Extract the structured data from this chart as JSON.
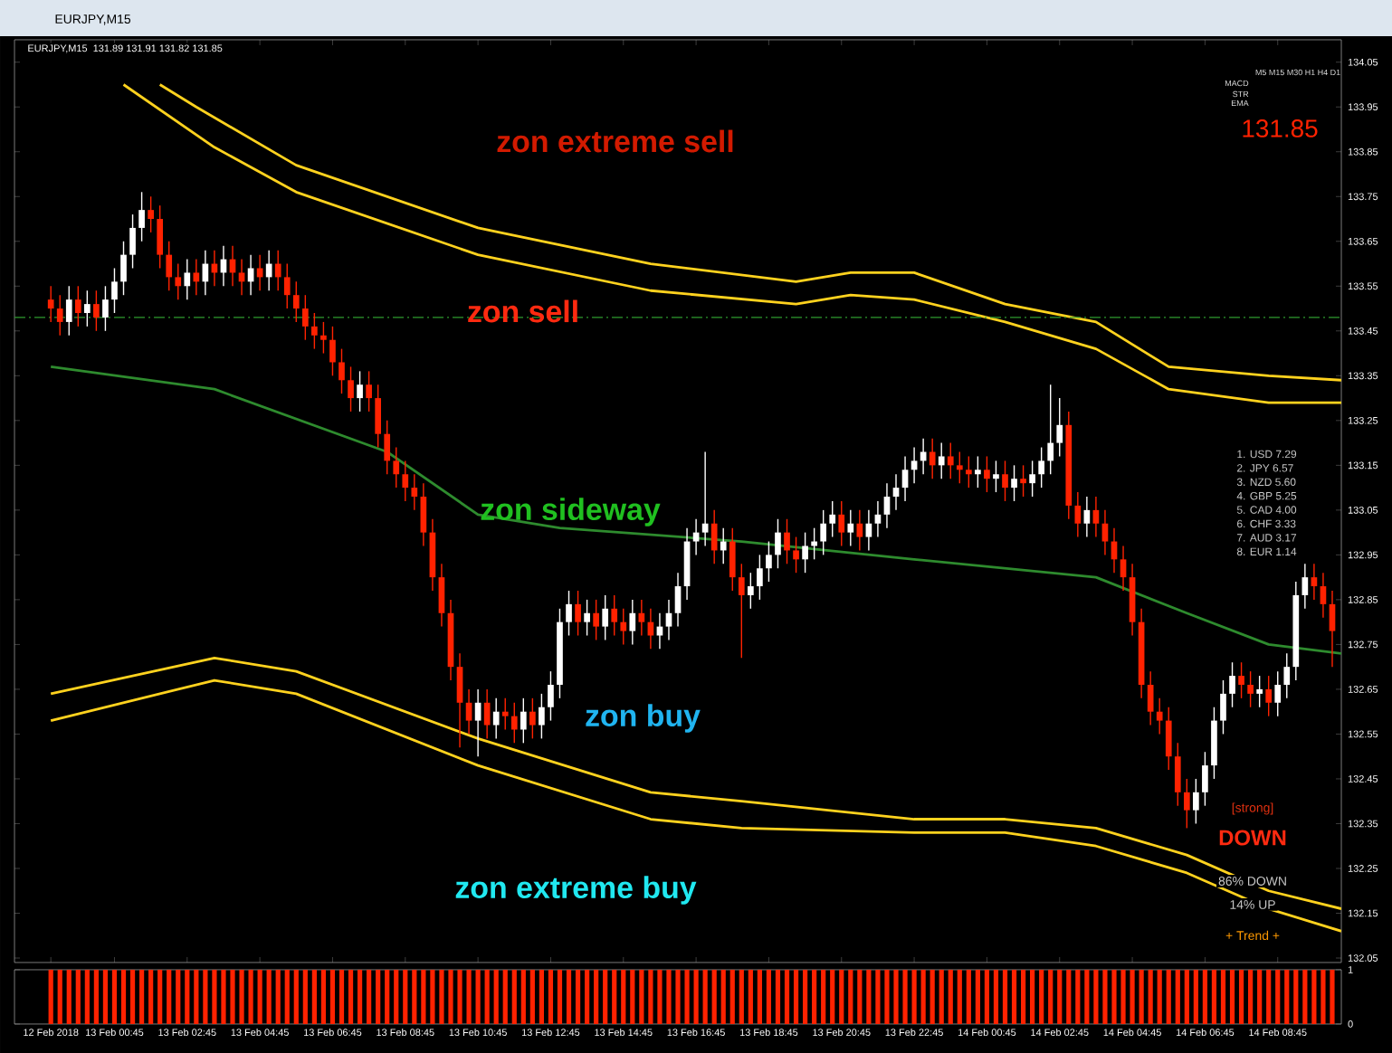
{
  "chart_data": [
    {
      "type": "candlestick",
      "title": "EURJPY,M15",
      "subtitle": "131.89 131.91 131.82 131.85",
      "x": [
        "2018-02-12T23:00",
        "2018-02-12T23:15",
        "2018-02-12T23:30",
        "2018-02-12T23:45",
        "2018-02-13T00:00",
        "2018-02-13T00:15",
        "2018-02-13T00:30",
        "2018-02-13T00:45",
        "2018-02-13T01:00",
        "2018-02-13T01:15",
        "2018-02-13T01:30",
        "2018-02-13T01:45",
        "2018-02-13T02:00",
        "2018-02-13T02:15",
        "2018-02-13T02:30",
        "2018-02-13T02:45",
        "2018-02-13T03:00",
        "2018-02-13T03:15",
        "2018-02-13T03:30",
        "2018-02-13T03:45",
        "2018-02-13T04:00",
        "2018-02-13T04:15",
        "2018-02-13T04:30",
        "2018-02-13T04:45",
        "2018-02-13T05:00",
        "2018-02-13T05:15",
        "2018-02-13T05:30",
        "2018-02-13T05:45",
        "2018-02-13T06:00",
        "2018-02-13T06:15",
        "2018-02-13T06:30",
        "2018-02-13T06:45",
        "2018-02-13T07:00",
        "2018-02-13T07:15",
        "2018-02-13T07:30",
        "2018-02-13T07:45",
        "2018-02-13T08:00",
        "2018-02-13T08:15",
        "2018-02-13T08:30",
        "2018-02-13T08:45",
        "2018-02-13T09:00",
        "2018-02-13T09:15",
        "2018-02-13T09:30",
        "2018-02-13T09:45",
        "2018-02-13T10:00",
        "2018-02-13T10:15",
        "2018-02-13T10:30",
        "2018-02-13T10:45",
        "2018-02-13T11:00",
        "2018-02-13T11:15",
        "2018-02-13T11:30",
        "2018-02-13T11:45",
        "2018-02-13T12:00",
        "2018-02-13T12:15",
        "2018-02-13T12:30",
        "2018-02-13T12:45",
        "2018-02-13T13:00",
        "2018-02-13T13:15",
        "2018-02-13T13:30",
        "2018-02-13T13:45",
        "2018-02-13T14:00",
        "2018-02-13T14:15",
        "2018-02-13T14:30",
        "2018-02-13T14:45",
        "2018-02-13T15:00",
        "2018-02-13T15:15",
        "2018-02-13T15:30",
        "2018-02-13T15:45",
        "2018-02-13T16:00",
        "2018-02-13T16:15",
        "2018-02-13T16:30",
        "2018-02-13T16:45",
        "2018-02-13T17:00",
        "2018-02-13T17:15",
        "2018-02-13T17:30",
        "2018-02-13T17:45",
        "2018-02-13T18:00",
        "2018-02-13T18:15",
        "2018-02-13T18:30",
        "2018-02-13T18:45",
        "2018-02-13T19:00",
        "2018-02-13T19:15",
        "2018-02-13T19:30",
        "2018-02-13T19:45",
        "2018-02-13T20:00",
        "2018-02-13T20:15",
        "2018-02-13T20:30",
        "2018-02-13T20:45",
        "2018-02-13T21:00",
        "2018-02-13T21:15",
        "2018-02-13T21:30",
        "2018-02-13T21:45",
        "2018-02-13T22:00",
        "2018-02-13T22:15",
        "2018-02-13T22:30",
        "2018-02-13T22:45",
        "2018-02-13T23:00",
        "2018-02-13T23:15",
        "2018-02-13T23:30",
        "2018-02-13T23:45",
        "2018-02-14T00:00",
        "2018-02-14T00:15",
        "2018-02-14T00:30",
        "2018-02-14T00:45",
        "2018-02-14T01:00",
        "2018-02-14T01:15",
        "2018-02-14T01:30",
        "2018-02-14T01:45",
        "2018-02-14T02:00",
        "2018-02-14T02:15",
        "2018-02-14T02:30",
        "2018-02-14T02:45",
        "2018-02-14T03:00",
        "2018-02-14T03:15",
        "2018-02-14T03:30",
        "2018-02-14T03:45",
        "2018-02-14T04:00",
        "2018-02-14T04:15",
        "2018-02-14T04:30",
        "2018-02-14T04:45",
        "2018-02-14T05:00",
        "2018-02-14T05:15",
        "2018-02-14T05:30",
        "2018-02-14T05:45",
        "2018-02-14T06:00",
        "2018-02-14T06:15",
        "2018-02-14T06:30",
        "2018-02-14T06:45",
        "2018-02-14T07:00",
        "2018-02-14T07:15",
        "2018-02-14T07:30",
        "2018-02-14T07:45",
        "2018-02-14T08:00",
        "2018-02-14T08:15",
        "2018-02-14T08:30",
        "2018-02-14T08:45",
        "2018-02-14T09:00",
        "2018-02-14T09:15",
        "2018-02-14T09:30",
        "2018-02-14T09:45",
        "2018-02-14T10:00",
        "2018-02-14T10:15"
      ],
      "ohlc": [
        [
          133.52,
          133.55,
          133.47,
          133.5
        ],
        [
          133.5,
          133.53,
          133.44,
          133.47
        ],
        [
          133.47,
          133.55,
          133.44,
          133.52
        ],
        [
          133.52,
          133.55,
          133.46,
          133.49
        ],
        [
          133.49,
          133.54,
          133.46,
          133.51
        ],
        [
          133.51,
          133.54,
          133.45,
          133.48
        ],
        [
          133.48,
          133.55,
          133.45,
          133.52
        ],
        [
          133.52,
          133.59,
          133.49,
          133.56
        ],
        [
          133.56,
          133.65,
          133.53,
          133.62
        ],
        [
          133.62,
          133.71,
          133.59,
          133.68
        ],
        [
          133.68,
          133.76,
          133.65,
          133.72
        ],
        [
          133.72,
          133.75,
          133.67,
          133.7
        ],
        [
          133.7,
          133.73,
          133.59,
          133.62
        ],
        [
          133.62,
          133.65,
          133.54,
          133.57
        ],
        [
          133.57,
          133.6,
          133.52,
          133.55
        ],
        [
          133.55,
          133.61,
          133.52,
          133.58
        ],
        [
          133.58,
          133.61,
          133.53,
          133.56
        ],
        [
          133.56,
          133.63,
          133.53,
          133.6
        ],
        [
          133.6,
          133.63,
          133.55,
          133.58
        ],
        [
          133.58,
          133.64,
          133.55,
          133.61
        ],
        [
          133.61,
          133.64,
          133.55,
          133.58
        ],
        [
          133.58,
          133.61,
          133.53,
          133.56
        ],
        [
          133.56,
          133.62,
          133.53,
          133.59
        ],
        [
          133.59,
          133.62,
          133.54,
          133.57
        ],
        [
          133.57,
          133.63,
          133.54,
          133.6
        ],
        [
          133.6,
          133.63,
          133.54,
          133.57
        ],
        [
          133.57,
          133.6,
          133.5,
          133.53
        ],
        [
          133.53,
          133.56,
          133.47,
          133.5
        ],
        [
          133.5,
          133.53,
          133.43,
          133.46
        ],
        [
          133.46,
          133.49,
          133.41,
          133.44
        ],
        [
          133.44,
          133.47,
          133.4,
          133.43
        ],
        [
          133.43,
          133.46,
          133.35,
          133.38
        ],
        [
          133.38,
          133.41,
          133.31,
          133.34
        ],
        [
          133.34,
          133.37,
          133.27,
          133.3
        ],
        [
          133.3,
          133.36,
          133.27,
          133.33
        ],
        [
          133.33,
          133.36,
          133.27,
          133.3
        ],
        [
          133.3,
          133.33,
          133.19,
          133.22
        ],
        [
          133.22,
          133.25,
          133.13,
          133.16
        ],
        [
          133.16,
          133.19,
          133.1,
          133.13
        ],
        [
          133.13,
          133.16,
          133.07,
          133.1
        ],
        [
          133.1,
          133.13,
          133.05,
          133.08
        ],
        [
          133.08,
          133.11,
          132.97,
          133.0
        ],
        [
          133.0,
          133.03,
          132.87,
          132.9
        ],
        [
          132.9,
          132.93,
          132.79,
          132.82
        ],
        [
          132.82,
          132.85,
          132.67,
          132.7
        ],
        [
          132.7,
          132.73,
          132.52,
          132.62
        ],
        [
          132.62,
          132.65,
          132.55,
          132.58
        ],
        [
          132.58,
          132.65,
          132.5,
          132.62
        ],
        [
          132.62,
          132.65,
          132.54,
          132.57
        ],
        [
          132.57,
          132.63,
          132.54,
          132.6
        ],
        [
          132.6,
          132.63,
          132.56,
          132.59
        ],
        [
          132.59,
          132.62,
          132.53,
          132.56
        ],
        [
          132.56,
          132.63,
          132.53,
          132.6
        ],
        [
          132.6,
          132.63,
          132.54,
          132.57
        ],
        [
          132.57,
          132.64,
          132.54,
          132.61
        ],
        [
          132.61,
          132.69,
          132.58,
          132.66
        ],
        [
          132.66,
          132.83,
          132.63,
          132.8
        ],
        [
          132.8,
          132.87,
          132.77,
          132.84
        ],
        [
          132.84,
          132.87,
          132.77,
          132.8
        ],
        [
          132.8,
          132.85,
          132.77,
          132.82
        ],
        [
          132.82,
          132.85,
          132.76,
          132.79
        ],
        [
          132.79,
          132.86,
          132.76,
          132.83
        ],
        [
          132.83,
          132.86,
          132.77,
          132.8
        ],
        [
          132.8,
          132.83,
          132.75,
          132.78
        ],
        [
          132.78,
          132.85,
          132.75,
          132.82
        ],
        [
          132.82,
          132.85,
          132.77,
          132.8
        ],
        [
          132.8,
          132.83,
          132.74,
          132.77
        ],
        [
          132.77,
          132.82,
          132.74,
          132.79
        ],
        [
          132.79,
          132.85,
          132.76,
          132.82
        ],
        [
          132.82,
          132.91,
          132.79,
          132.88
        ],
        [
          132.88,
          133.01,
          132.85,
          132.98
        ],
        [
          132.98,
          133.03,
          132.95,
          133.0
        ],
        [
          133.0,
          133.18,
          132.97,
          133.02
        ],
        [
          133.02,
          133.05,
          132.93,
          132.96
        ],
        [
          132.96,
          133.01,
          132.93,
          132.98
        ],
        [
          132.98,
          133.01,
          132.87,
          132.9
        ],
        [
          132.9,
          132.93,
          132.72,
          132.86
        ],
        [
          132.86,
          132.91,
          132.83,
          132.88
        ],
        [
          132.88,
          132.95,
          132.85,
          132.92
        ],
        [
          132.92,
          132.98,
          132.89,
          132.95
        ],
        [
          132.95,
          133.03,
          132.92,
          133.0
        ],
        [
          133.0,
          133.03,
          132.93,
          132.96
        ],
        [
          132.96,
          132.99,
          132.91,
          132.94
        ],
        [
          132.94,
          133.0,
          132.91,
          132.97
        ],
        [
          132.97,
          133.01,
          132.94,
          132.98
        ],
        [
          132.98,
          133.05,
          132.95,
          133.02
        ],
        [
          133.02,
          133.07,
          132.99,
          133.04
        ],
        [
          133.04,
          133.07,
          132.97,
          133.0
        ],
        [
          133.0,
          133.05,
          132.97,
          133.02
        ],
        [
          133.02,
          133.05,
          132.96,
          132.99
        ],
        [
          132.99,
          133.05,
          132.96,
          133.02
        ],
        [
          133.02,
          133.07,
          132.99,
          133.04
        ],
        [
          133.04,
          133.11,
          133.01,
          133.08
        ],
        [
          133.08,
          133.13,
          133.05,
          133.1
        ],
        [
          133.1,
          133.17,
          133.07,
          133.14
        ],
        [
          133.14,
          133.19,
          133.11,
          133.16
        ],
        [
          133.16,
          133.21,
          133.13,
          133.18
        ],
        [
          133.18,
          133.21,
          133.12,
          133.15
        ],
        [
          133.15,
          133.2,
          133.12,
          133.17
        ],
        [
          133.17,
          133.2,
          133.12,
          133.15
        ],
        [
          133.15,
          133.18,
          133.11,
          133.14
        ],
        [
          133.14,
          133.17,
          133.1,
          133.13
        ],
        [
          133.13,
          133.17,
          133.1,
          133.14
        ],
        [
          133.14,
          133.17,
          133.09,
          133.12
        ],
        [
          133.12,
          133.16,
          133.09,
          133.13
        ],
        [
          133.13,
          133.16,
          133.07,
          133.1
        ],
        [
          133.1,
          133.15,
          133.07,
          133.12
        ],
        [
          133.12,
          133.15,
          133.08,
          133.11
        ],
        [
          133.11,
          133.16,
          133.08,
          133.13
        ],
        [
          133.13,
          133.19,
          133.1,
          133.16
        ],
        [
          133.16,
          133.33,
          133.13,
          133.2
        ],
        [
          133.2,
          133.3,
          133.17,
          133.24
        ],
        [
          133.24,
          133.27,
          133.03,
          133.06
        ],
        [
          133.06,
          133.09,
          132.99,
          133.02
        ],
        [
          133.02,
          133.08,
          132.99,
          133.05
        ],
        [
          133.05,
          133.08,
          132.99,
          133.02
        ],
        [
          133.02,
          133.05,
          132.95,
          132.98
        ],
        [
          132.98,
          133.01,
          132.91,
          132.94
        ],
        [
          132.94,
          132.97,
          132.87,
          132.9
        ],
        [
          132.9,
          132.93,
          132.77,
          132.8
        ],
        [
          132.8,
          132.83,
          132.63,
          132.66
        ],
        [
          132.66,
          132.69,
          132.57,
          132.6
        ],
        [
          132.6,
          132.63,
          132.55,
          132.58
        ],
        [
          132.58,
          132.61,
          132.47,
          132.5
        ],
        [
          132.5,
          132.53,
          132.39,
          132.42
        ],
        [
          132.42,
          132.45,
          132.34,
          132.38
        ],
        [
          132.38,
          132.45,
          132.35,
          132.42
        ],
        [
          132.42,
          132.51,
          132.39,
          132.48
        ],
        [
          132.48,
          132.61,
          132.45,
          132.58
        ],
        [
          132.58,
          132.67,
          132.55,
          132.64
        ],
        [
          132.64,
          132.71,
          132.61,
          132.68
        ],
        [
          132.68,
          132.71,
          132.63,
          132.66
        ],
        [
          132.66,
          132.69,
          132.61,
          132.64
        ],
        [
          132.64,
          132.68,
          132.61,
          132.65
        ],
        [
          132.65,
          132.68,
          132.59,
          132.62
        ],
        [
          132.62,
          132.69,
          132.59,
          132.66
        ],
        [
          132.66,
          132.73,
          132.63,
          132.7
        ],
        [
          132.7,
          132.89,
          132.67,
          132.86
        ],
        [
          132.86,
          132.93,
          132.83,
          132.9
        ],
        [
          132.9,
          132.93,
          132.85,
          132.88
        ],
        [
          132.88,
          132.91,
          132.81,
          132.84
        ],
        [
          132.84,
          132.87,
          132.7,
          132.78
        ]
      ],
      "series": [
        {
          "type": "line",
          "color": "#ffd21e",
          "x": [
            "2018-02-13T02:00",
            "2018-02-13T03:00",
            "2018-02-13T05:45",
            "2018-02-13T10:45",
            "2018-02-13T15:30",
            "2018-02-13T19:30",
            "2018-02-13T21:00",
            "2018-02-13T22:45",
            "2018-02-14T01:15",
            "2018-02-14T03:45",
            "2018-02-14T05:45",
            "2018-02-14T08:30",
            "2018-02-14T10:30"
          ],
          "values": [
            134.0,
            133.95,
            133.82,
            133.68,
            133.6,
            133.56,
            133.58,
            133.58,
            133.51,
            133.47,
            133.37,
            133.35,
            133.34
          ]
        },
        {
          "type": "line",
          "color": "#ffd21e",
          "x": [
            "2018-02-13T01:00",
            "2018-02-13T03:30",
            "2018-02-13T05:45",
            "2018-02-13T10:45",
            "2018-02-13T15:30",
            "2018-02-13T19:30",
            "2018-02-13T21:00",
            "2018-02-13T22:45",
            "2018-02-14T01:15",
            "2018-02-14T03:45",
            "2018-02-14T05:45",
            "2018-02-14T08:30",
            "2018-02-14T10:30"
          ],
          "values": [
            134.0,
            133.86,
            133.76,
            133.62,
            133.54,
            133.51,
            133.53,
            133.52,
            133.47,
            133.41,
            133.32,
            133.29,
            133.29
          ]
        },
        {
          "type": "line",
          "color": "#2e8b2e",
          "x": [
            "2018-02-12T23:00",
            "2018-02-13T03:30",
            "2018-02-13T08:15",
            "2018-02-13T10:45",
            "2018-02-13T13:00",
            "2018-02-13T18:00",
            "2018-02-13T22:45",
            "2018-02-14T03:45",
            "2018-02-14T06:15",
            "2018-02-14T08:30",
            "2018-02-14T10:30"
          ],
          "values": [
            133.37,
            133.32,
            133.18,
            133.04,
            133.01,
            132.98,
            132.94,
            132.9,
            132.82,
            132.75,
            132.73
          ]
        },
        {
          "type": "line",
          "color": "#ffd21e",
          "x": [
            "2018-02-12T23:00",
            "2018-02-13T03:30",
            "2018-02-13T05:45",
            "2018-02-13T10:45",
            "2018-02-13T15:30",
            "2018-02-13T18:00",
            "2018-02-13T22:45",
            "2018-02-14T01:15",
            "2018-02-14T03:45",
            "2018-02-14T06:15",
            "2018-02-14T08:30",
            "2018-02-14T10:30"
          ],
          "values": [
            132.64,
            132.72,
            132.69,
            132.54,
            132.42,
            132.4,
            132.36,
            132.36,
            132.34,
            132.28,
            132.2,
            132.16
          ]
        },
        {
          "type": "line",
          "color": "#ffd21e",
          "x": [
            "2018-02-12T23:00",
            "2018-02-13T03:30",
            "2018-02-13T05:45",
            "2018-02-13T10:45",
            "2018-02-13T15:30",
            "2018-02-13T18:00",
            "2018-02-13T22:45",
            "2018-02-14T01:15",
            "2018-02-14T03:45",
            "2018-02-14T06:15",
            "2018-02-14T08:30",
            "2018-02-14T10:30"
          ],
          "values": [
            132.58,
            132.67,
            132.64,
            132.48,
            132.36,
            132.34,
            132.33,
            132.33,
            132.3,
            132.24,
            132.16,
            132.11
          ]
        }
      ],
      "xlim": [
        "2018-02-12T22:00",
        "2018-02-14T10:30"
      ],
      "xticks": [
        {
          "value": "2018-02-12T23:00",
          "label": null
        },
        {
          "value": "2018-02-13T00:45",
          "label": null
        },
        {
          "value": "2018-02-13T02:45",
          "label": null
        },
        {
          "value": "2018-02-13T04:45",
          "label": null
        },
        {
          "value": "2018-02-13T06:45",
          "label": null
        },
        {
          "value": "2018-02-13T08:45",
          "label": null
        },
        {
          "value": "2018-02-13T10:45",
          "label": null
        },
        {
          "value": "2018-02-13T12:45",
          "label": null
        },
        {
          "value": "2018-02-13T14:45",
          "label": null
        },
        {
          "value": "2018-02-13T16:45",
          "label": null
        },
        {
          "value": "2018-02-13T18:45",
          "label": null
        },
        {
          "value": "2018-02-13T20:45",
          "label": null
        },
        {
          "value": "2018-02-13T22:45",
          "label": null
        },
        {
          "value": "2018-02-14T00:45",
          "label": null
        },
        {
          "value": "2018-02-14T02:45",
          "label": null
        },
        {
          "value": "2018-02-14T04:45",
          "label": null
        },
        {
          "value": "2018-02-14T06:45",
          "label": null
        },
        {
          "value": "2018-02-14T08:45",
          "label": null
        }
      ],
      "ylim": [
        132.04,
        134.1
      ],
      "yticks": [
        132.05,
        132.15,
        132.25,
        132.35,
        132.45,
        132.55,
        132.65,
        132.75,
        132.85,
        132.95,
        133.05,
        133.15,
        133.25,
        133.35,
        133.45,
        133.55,
        133.65,
        133.75,
        133.85,
        133.95,
        134.05
      ],
      "tick_labels": "y",
      "ref_lines": [
        {
          "axis": "y",
          "value": 133.48,
          "color": "#2e9a2e",
          "line_style": "dashed"
        }
      ],
      "annotations": [
        "zon extreme sell",
        "zon sell",
        "zon sideway",
        "zon buy",
        "zon extreme buy",
        "M5 M15 M30 H1 H4 D1",
        "MACD",
        "STR",
        "EMA",
        "131.85",
        "1. USD 7.29",
        "2. JPY 6.57",
        "3. NZD 5.60",
        "4. GBP 5.25",
        "5. CAD 4.00",
        "6. CHF 3.33",
        "7. AUD 3.17",
        "8. EUR 1.14",
        "[strong]",
        "DOWN",
        "86% DOWN",
        "14% UP",
        "+ Trend +"
      ]
    },
    {
      "type": "bar",
      "color": "#ff2200",
      "x": [
        "2018-02-12T23:00",
        "2018-02-12T23:15",
        "2018-02-12T23:30",
        "2018-02-12T23:45",
        "2018-02-13T00:00",
        "2018-02-13T00:15",
        "2018-02-13T00:30",
        "2018-02-13T00:45",
        "2018-02-13T01:00",
        "2018-02-13T01:15",
        "2018-02-13T01:30",
        "2018-02-13T01:45",
        "2018-02-13T02:00",
        "2018-02-13T02:15",
        "2018-02-13T02:30",
        "2018-02-13T02:45",
        "2018-02-13T03:00",
        "2018-02-13T03:15",
        "2018-02-13T03:30",
        "2018-02-13T03:45",
        "2018-02-13T04:00",
        "2018-02-13T04:15",
        "2018-02-13T04:30",
        "2018-02-13T04:45",
        "2018-02-13T05:00",
        "2018-02-13T05:15",
        "2018-02-13T05:30",
        "2018-02-13T05:45",
        "2018-02-13T06:00",
        "2018-02-13T06:15",
        "2018-02-13T06:30",
        "2018-02-13T06:45",
        "2018-02-13T07:00",
        "2018-02-13T07:15",
        "2018-02-13T07:30",
        "2018-02-13T07:45",
        "2018-02-13T08:00",
        "2018-02-13T08:15",
        "2018-02-13T08:30",
        "2018-02-13T08:45",
        "2018-02-13T09:00",
        "2018-02-13T09:15",
        "2018-02-13T09:30",
        "2018-02-13T09:45",
        "2018-02-13T10:00",
        "2018-02-13T10:15",
        "2018-02-13T10:30",
        "2018-02-13T10:45",
        "2018-02-13T11:00",
        "2018-02-13T11:15",
        "2018-02-13T11:30",
        "2018-02-13T11:45",
        "2018-02-13T12:00",
        "2018-02-13T12:15",
        "2018-02-13T12:30",
        "2018-02-13T12:45",
        "2018-02-13T13:00",
        "2018-02-13T13:15",
        "2018-02-13T13:30",
        "2018-02-13T13:45",
        "2018-02-13T14:00",
        "2018-02-13T14:15",
        "2018-02-13T14:30",
        "2018-02-13T14:45",
        "2018-02-13T15:00",
        "2018-02-13T15:15",
        "2018-02-13T15:30",
        "2018-02-13T15:45",
        "2018-02-13T16:00",
        "2018-02-13T16:15",
        "2018-02-13T16:30",
        "2018-02-13T16:45",
        "2018-02-13T17:00",
        "2018-02-13T17:15",
        "2018-02-13T17:30",
        "2018-02-13T17:45",
        "2018-02-13T18:00",
        "2018-02-13T18:15",
        "2018-02-13T18:30",
        "2018-02-13T18:45",
        "2018-02-13T19:00",
        "2018-02-13T19:15",
        "2018-02-13T19:30",
        "2018-02-13T19:45",
        "2018-02-13T20:00",
        "2018-02-13T20:15",
        "2018-02-13T20:30",
        "2018-02-13T20:45",
        "2018-02-13T21:00",
        "2018-02-13T21:15",
        "2018-02-13T21:30",
        "2018-02-13T21:45",
        "2018-02-13T22:00",
        "2018-02-13T22:15",
        "2018-02-13T22:30",
        "2018-02-13T22:45",
        "2018-02-13T23:00",
        "2018-02-13T23:15",
        "2018-02-13T23:30",
        "2018-02-13T23:45",
        "2018-02-14T00:00",
        "2018-02-14T00:15",
        "2018-02-14T00:30",
        "2018-02-14T00:45",
        "2018-02-14T01:00",
        "2018-02-14T01:15",
        "2018-02-14T01:30",
        "2018-02-14T01:45",
        "2018-02-14T02:00",
        "2018-02-14T02:15",
        "2018-02-14T02:30",
        "2018-02-14T02:45",
        "2018-02-14T03:00",
        "2018-02-14T03:15",
        "2018-02-14T03:30",
        "2018-02-14T03:45",
        "2018-02-14T04:00",
        "2018-02-14T04:15",
        "2018-02-14T04:30",
        "2018-02-14T04:45",
        "2018-02-14T05:00",
        "2018-02-14T05:15",
        "2018-02-14T05:30",
        "2018-02-14T05:45",
        "2018-02-14T06:00",
        "2018-02-14T06:15",
        "2018-02-14T06:30",
        "2018-02-14T06:45",
        "2018-02-14T07:00",
        "2018-02-14T07:15",
        "2018-02-14T07:30",
        "2018-02-14T07:45",
        "2018-02-14T08:00",
        "2018-02-14T08:15",
        "2018-02-14T08:30",
        "2018-02-14T08:45",
        "2018-02-14T09:00",
        "2018-02-14T09:15",
        "2018-02-14T09:30",
        "2018-02-14T09:45",
        "2018-02-14T10:00",
        "2018-02-14T10:15"
      ],
      "values": [
        1,
        1,
        1,
        1,
        1,
        1,
        1,
        1,
        1,
        1,
        1,
        1,
        1,
        1,
        1,
        1,
        1,
        1,
        1,
        1,
        1,
        1,
        1,
        1,
        1,
        1,
        1,
        1,
        1,
        1,
        1,
        1,
        1,
        1,
        1,
        1,
        1,
        1,
        1,
        1,
        1,
        1,
        1,
        1,
        1,
        1,
        1,
        1,
        1,
        1,
        1,
        1,
        1,
        1,
        1,
        1,
        1,
        1,
        1,
        1,
        1,
        1,
        1,
        1,
        1,
        1,
        1,
        1,
        1,
        1,
        1,
        1,
        1,
        1,
        1,
        1,
        1,
        1,
        1,
        1,
        1,
        1,
        1,
        1,
        1,
        1,
        1,
        1,
        1,
        1,
        1,
        1,
        1,
        1,
        1,
        1,
        1,
        1,
        1,
        1,
        1,
        1,
        1,
        1,
        1,
        1,
        1,
        1,
        1,
        1,
        1,
        1,
        1,
        1,
        1,
        1,
        1,
        1,
        1,
        1,
        1,
        1,
        1,
        1,
        1,
        1,
        1,
        1,
        1,
        1,
        1,
        1,
        1,
        1,
        1,
        1,
        1,
        1,
        1,
        1,
        1,
        1
      ],
      "xlim": [
        "2018-02-12T22:00",
        "2018-02-14T10:30"
      ],
      "xticks": [
        {
          "value": "2018-02-12T23:00",
          "label": "12 Feb 2018"
        },
        {
          "value": "2018-02-13T00:45",
          "label": "13 Feb 00:45"
        },
        {
          "value": "2018-02-13T02:45",
          "label": "13 Feb 02:45"
        },
        {
          "value": "2018-02-13T04:45",
          "label": "13 Feb 04:45"
        },
        {
          "value": "2018-02-13T06:45",
          "label": "13 Feb 06:45"
        },
        {
          "value": "2018-02-13T08:45",
          "label": "13 Feb 08:45"
        },
        {
          "value": "2018-02-13T10:45",
          "label": "13 Feb 10:45"
        },
        {
          "value": "2018-02-13T12:45",
          "label": "13 Feb 12:45"
        },
        {
          "value": "2018-02-13T14:45",
          "label": "13 Feb 14:45"
        },
        {
          "value": "2018-02-13T16:45",
          "label": "13 Feb 16:45"
        },
        {
          "value": "2018-02-13T18:45",
          "label": "13 Feb 18:45"
        },
        {
          "value": "2018-02-13T20:45",
          "label": "13 Feb 20:45"
        },
        {
          "value": "2018-02-13T22:45",
          "label": "13 Feb 22:45"
        },
        {
          "value": "2018-02-14T00:45",
          "label": "14 Feb 00:45"
        },
        {
          "value": "2018-02-14T02:45",
          "label": "14 Feb 02:45"
        },
        {
          "value": "2018-02-14T04:45",
          "label": "14 Feb 04:45"
        },
        {
          "value": "2018-02-14T06:45",
          "label": "14 Feb 06:45"
        },
        {
          "value": "2018-02-14T08:45",
          "label": "14 Feb 08:45"
        }
      ],
      "ylim": [
        0,
        1
      ],
      "yticks": [
        0,
        1
      ]
    }
  ]
}
